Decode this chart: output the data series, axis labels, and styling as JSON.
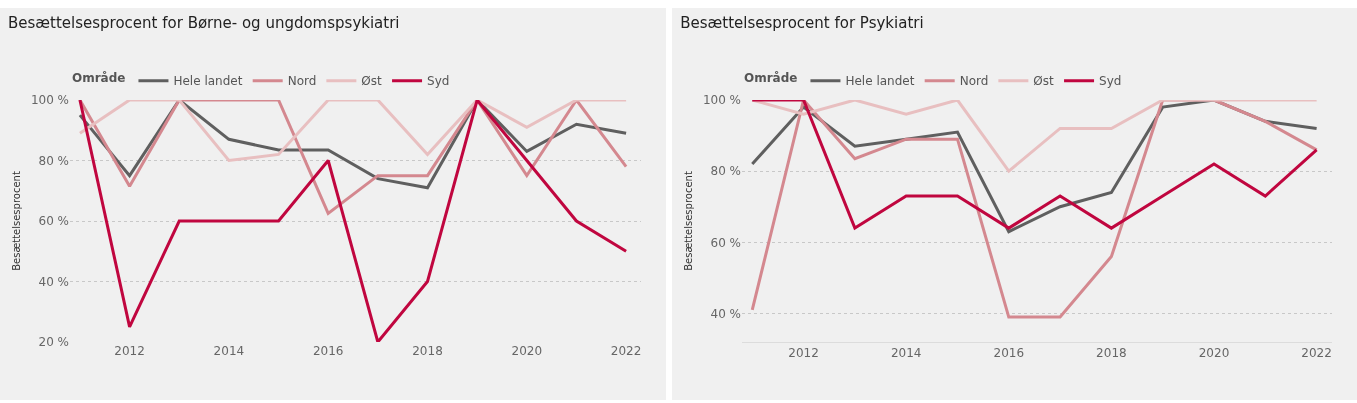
{
  "chart_data": [
    {
      "type": "line",
      "title": "Besættelsesprocent for Børne- og ungdomspsykiatri",
      "ylabel": "Besættelsesprocent",
      "legend_title": "Område",
      "x": [
        2011,
        2012,
        2013,
        2014,
        2015,
        2016,
        2017,
        2018,
        2019,
        2020,
        2021,
        2022
      ],
      "series": [
        {
          "name": "Hele landet",
          "color": "#5f5f5f",
          "values": [
            95,
            75,
            100,
            87,
            83.5,
            83.5,
            74,
            71,
            100,
            83,
            92,
            89
          ]
        },
        {
          "name": "Nord",
          "color": "#d4888f",
          "values": [
            100,
            71.5,
            100,
            100,
            100,
            62.5,
            75,
            75,
            100,
            75,
            100,
            78
          ]
        },
        {
          "name": "Øst",
          "color": "#e8bfc0",
          "values": [
            89,
            100,
            100,
            80,
            82,
            100,
            100,
            82,
            100,
            91,
            100,
            100
          ]
        },
        {
          "name": "Syd",
          "color": "#c0063f",
          "values": [
            100,
            25,
            60,
            60,
            60,
            80,
            20,
            40,
            100,
            80,
            60,
            50
          ]
        }
      ],
      "xlim": [
        2010.8,
        2022.3
      ],
      "xticks": [
        2012,
        2014,
        2016,
        2018,
        2020,
        2022
      ],
      "ylim": [
        20,
        100
      ],
      "yticks": [
        {
          "value": 20,
          "label": "20 %"
        },
        {
          "value": 40,
          "label": "40 %"
        },
        {
          "value": 60,
          "label": "60 %"
        },
        {
          "value": 80,
          "label": "80 %"
        },
        {
          "value": 100,
          "label": "100 %"
        }
      ],
      "grid": "y",
      "legend": "top left",
      "line_style": "solid"
    },
    {
      "type": "line",
      "title": "Besættelsesprocent for Psykiatri",
      "ylabel": "Besættelsesprocent",
      "legend_title": "Område",
      "x": [
        2011,
        2012,
        2013,
        2014,
        2015,
        2016,
        2017,
        2018,
        2019,
        2020,
        2021,
        2022
      ],
      "series": [
        {
          "name": "Hele landet",
          "color": "#5f5f5f",
          "values": [
            82,
            98,
            87,
            89,
            91,
            63,
            70,
            74,
            98,
            100,
            94,
            92
          ]
        },
        {
          "name": "Nord",
          "color": "#d4888f",
          "values": [
            41,
            100,
            83.5,
            89,
            89,
            39,
            39,
            56,
            100,
            100,
            94,
            86
          ]
        },
        {
          "name": "Øst",
          "color": "#e8bfc0",
          "values": [
            100,
            96,
            100,
            96,
            100,
            80,
            92,
            92,
            100,
            100,
            100,
            100
          ]
        },
        {
          "name": "Syd",
          "color": "#c0063f",
          "values": [
            100,
            100,
            64,
            73,
            73,
            64,
            73,
            64,
            73,
            82,
            73,
            86
          ]
        }
      ],
      "xlim": [
        2010.8,
        2022.3
      ],
      "xticks": [
        2012,
        2014,
        2016,
        2018,
        2020,
        2022
      ],
      "ylim": [
        32,
        100
      ],
      "yticks": [
        {
          "value": 40,
          "label": "40 %"
        },
        {
          "value": 60,
          "label": "60 %"
        },
        {
          "value": 80,
          "label": "80 %"
        },
        {
          "value": 100,
          "label": "100 %"
        }
      ],
      "grid": "y",
      "legend": "top left",
      "line_style": "solid"
    }
  ]
}
